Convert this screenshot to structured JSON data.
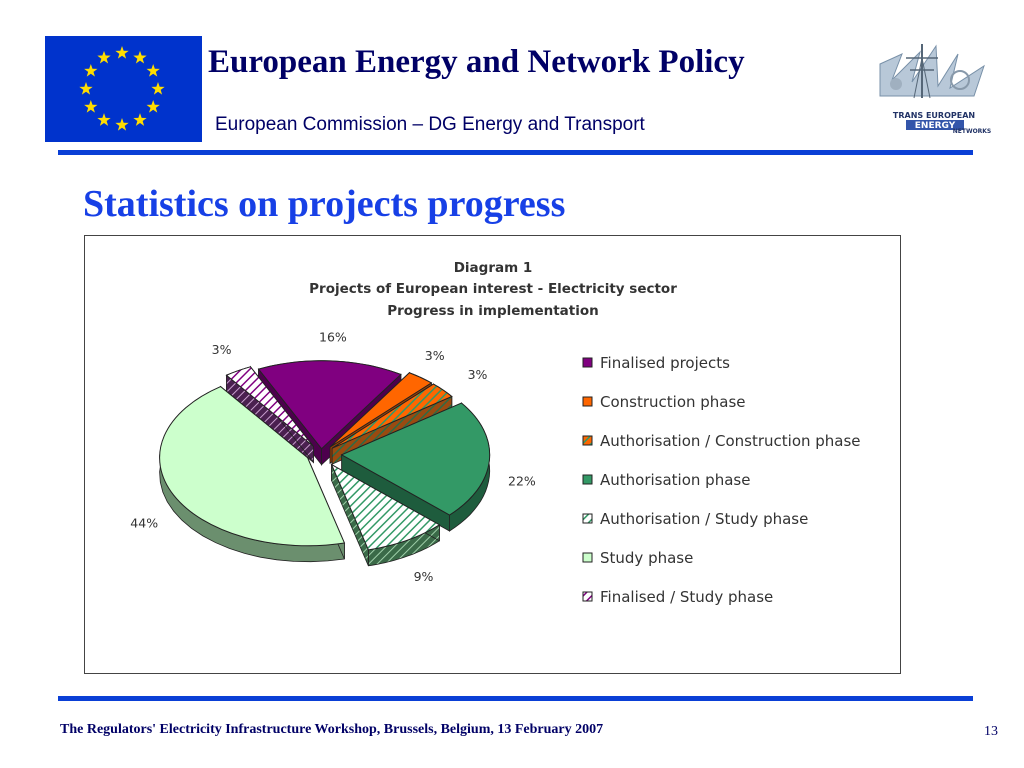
{
  "header": {
    "title": "European Energy and Network Policy",
    "subtitle": "European Commission – DG Energy and Transport",
    "logo_text_line1": "TRANS EUROPEAN",
    "logo_text_line2": "ENERGY",
    "logo_text_line3": "NETWORKS"
  },
  "slide": {
    "title": "Statistics on projects progress"
  },
  "chart_data": {
    "type": "pie",
    "title_lines": [
      "Diagram 1",
      "Projects of European interest - Electricity sector",
      "Progress in implementation"
    ],
    "legend_position": "right",
    "series": [
      {
        "name": "Finalised projects",
        "value": 16,
        "label": "16%",
        "color": "#800080",
        "pattern": "solid"
      },
      {
        "name": "Construction phase",
        "value": 3,
        "label": "3%",
        "color": "#ff6600",
        "pattern": "solid"
      },
      {
        "name": "Authorisation / Construction phase",
        "value": 3,
        "label": "3%",
        "color": "#ff6600",
        "pattern": "hatch-green"
      },
      {
        "name": "Authorisation phase",
        "value": 22,
        "label": "22%",
        "color": "#339966",
        "pattern": "solid"
      },
      {
        "name": "Authorisation / Study phase",
        "value": 9,
        "label": "9%",
        "color": "#339966",
        "pattern": "hatch-light"
      },
      {
        "name": "Study phase",
        "value": 44,
        "label": "44%",
        "color": "#ccffcc",
        "pattern": "solid"
      },
      {
        "name": "Finalised / Study phase",
        "value": 3,
        "label": "3%",
        "color": "#800080",
        "pattern": "hatch-light"
      }
    ]
  },
  "footer": {
    "text": "The Regulators' Electricity Infrastructure Workshop, Brussels, Belgium, 13 February  2007",
    "page_number": "13"
  }
}
